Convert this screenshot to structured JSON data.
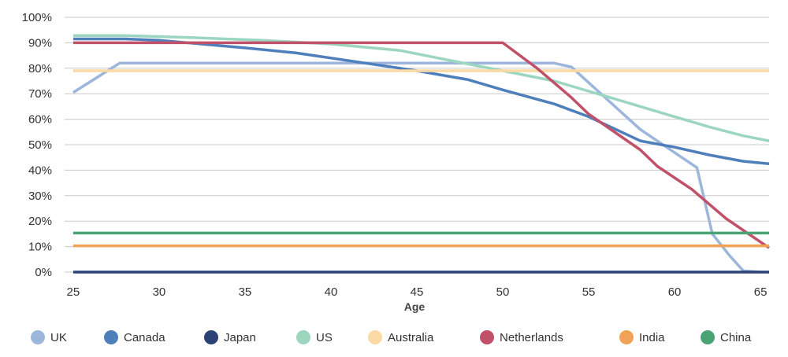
{
  "chart_data": {
    "type": "line",
    "title": "",
    "xlabel": "Age",
    "ylabel": "",
    "xlim": [
      24.5,
      65.5
    ],
    "ylim": [
      0,
      100
    ],
    "x_ticks": [
      25,
      30,
      35,
      40,
      45,
      50,
      55,
      60,
      65
    ],
    "y_ticks": [
      {
        "value": 0,
        "label": "0%"
      },
      {
        "value": 10,
        "label": "10%"
      },
      {
        "value": 20,
        "label": "20%"
      },
      {
        "value": 30,
        "label": "30%"
      },
      {
        "value": 40,
        "label": "40%"
      },
      {
        "value": 50,
        "label": "50%"
      },
      {
        "value": 60,
        "label": "60%"
      },
      {
        "value": 70,
        "label": "70%"
      },
      {
        "value": 80,
        "label": "80%"
      },
      {
        "value": 90,
        "label": "90%"
      },
      {
        "value": 100,
        "label": "100%"
      }
    ],
    "grid": true,
    "legend_position": "bottom",
    "series": [
      {
        "name": "UK",
        "color": "#9db6dc",
        "points": [
          [
            25,
            70.5
          ],
          [
            27.7,
            82
          ],
          [
            53,
            82
          ],
          [
            54,
            80.5
          ],
          [
            58,
            56
          ],
          [
            61.3,
            41
          ],
          [
            62.2,
            15
          ],
          [
            63.2,
            6.5
          ],
          [
            64,
            0.5
          ],
          [
            65,
            0
          ]
        ]
      },
      {
        "name": "Canada",
        "color": "#4e7fbb",
        "points": [
          [
            25,
            91.5
          ],
          [
            28,
            91.5
          ],
          [
            30,
            91
          ],
          [
            35,
            88
          ],
          [
            38,
            86
          ],
          [
            40,
            84
          ],
          [
            45,
            79
          ],
          [
            48,
            75.5
          ],
          [
            50,
            71.5
          ],
          [
            53,
            66
          ],
          [
            55,
            61
          ],
          [
            58,
            51.5
          ],
          [
            60,
            49
          ],
          [
            62,
            46
          ],
          [
            64,
            43.5
          ],
          [
            65.5,
            42.5
          ]
        ]
      },
      {
        "name": "Japan",
        "color": "#2c4276",
        "points": [
          [
            25,
            0
          ],
          [
            65.5,
            0
          ]
        ]
      },
      {
        "name": "US",
        "color": "#9cd6be",
        "points": [
          [
            25,
            92.8
          ],
          [
            28,
            92.8
          ],
          [
            32,
            92
          ],
          [
            36,
            91
          ],
          [
            40,
            89.5
          ],
          [
            44,
            87
          ],
          [
            47,
            83
          ],
          [
            50,
            79
          ],
          [
            53,
            75
          ],
          [
            56,
            69
          ],
          [
            58,
            65
          ],
          [
            60,
            61
          ],
          [
            62,
            57
          ],
          [
            64,
            53.5
          ],
          [
            65.5,
            51.5
          ]
        ]
      },
      {
        "name": "Australia",
        "color": "#fad9a4",
        "points": [
          [
            25,
            79
          ],
          [
            65.5,
            79
          ]
        ]
      },
      {
        "name": "Netherlands",
        "color": "#c15168",
        "points": [
          [
            25,
            90
          ],
          [
            30,
            90
          ],
          [
            50,
            90
          ],
          [
            52,
            80
          ],
          [
            54,
            68.5
          ],
          [
            55,
            62
          ],
          [
            58,
            48
          ],
          [
            59,
            41.5
          ],
          [
            61,
            32.5
          ],
          [
            63,
            21
          ],
          [
            65.5,
            9.5
          ]
        ]
      },
      {
        "name": "India",
        "color": "#f0a255",
        "points": [
          [
            25,
            10.3
          ],
          [
            65.5,
            10.3
          ]
        ]
      },
      {
        "name": "China",
        "color": "#4aa374",
        "points": [
          [
            25,
            15.3
          ],
          [
            65.5,
            15.3
          ]
        ]
      }
    ]
  }
}
